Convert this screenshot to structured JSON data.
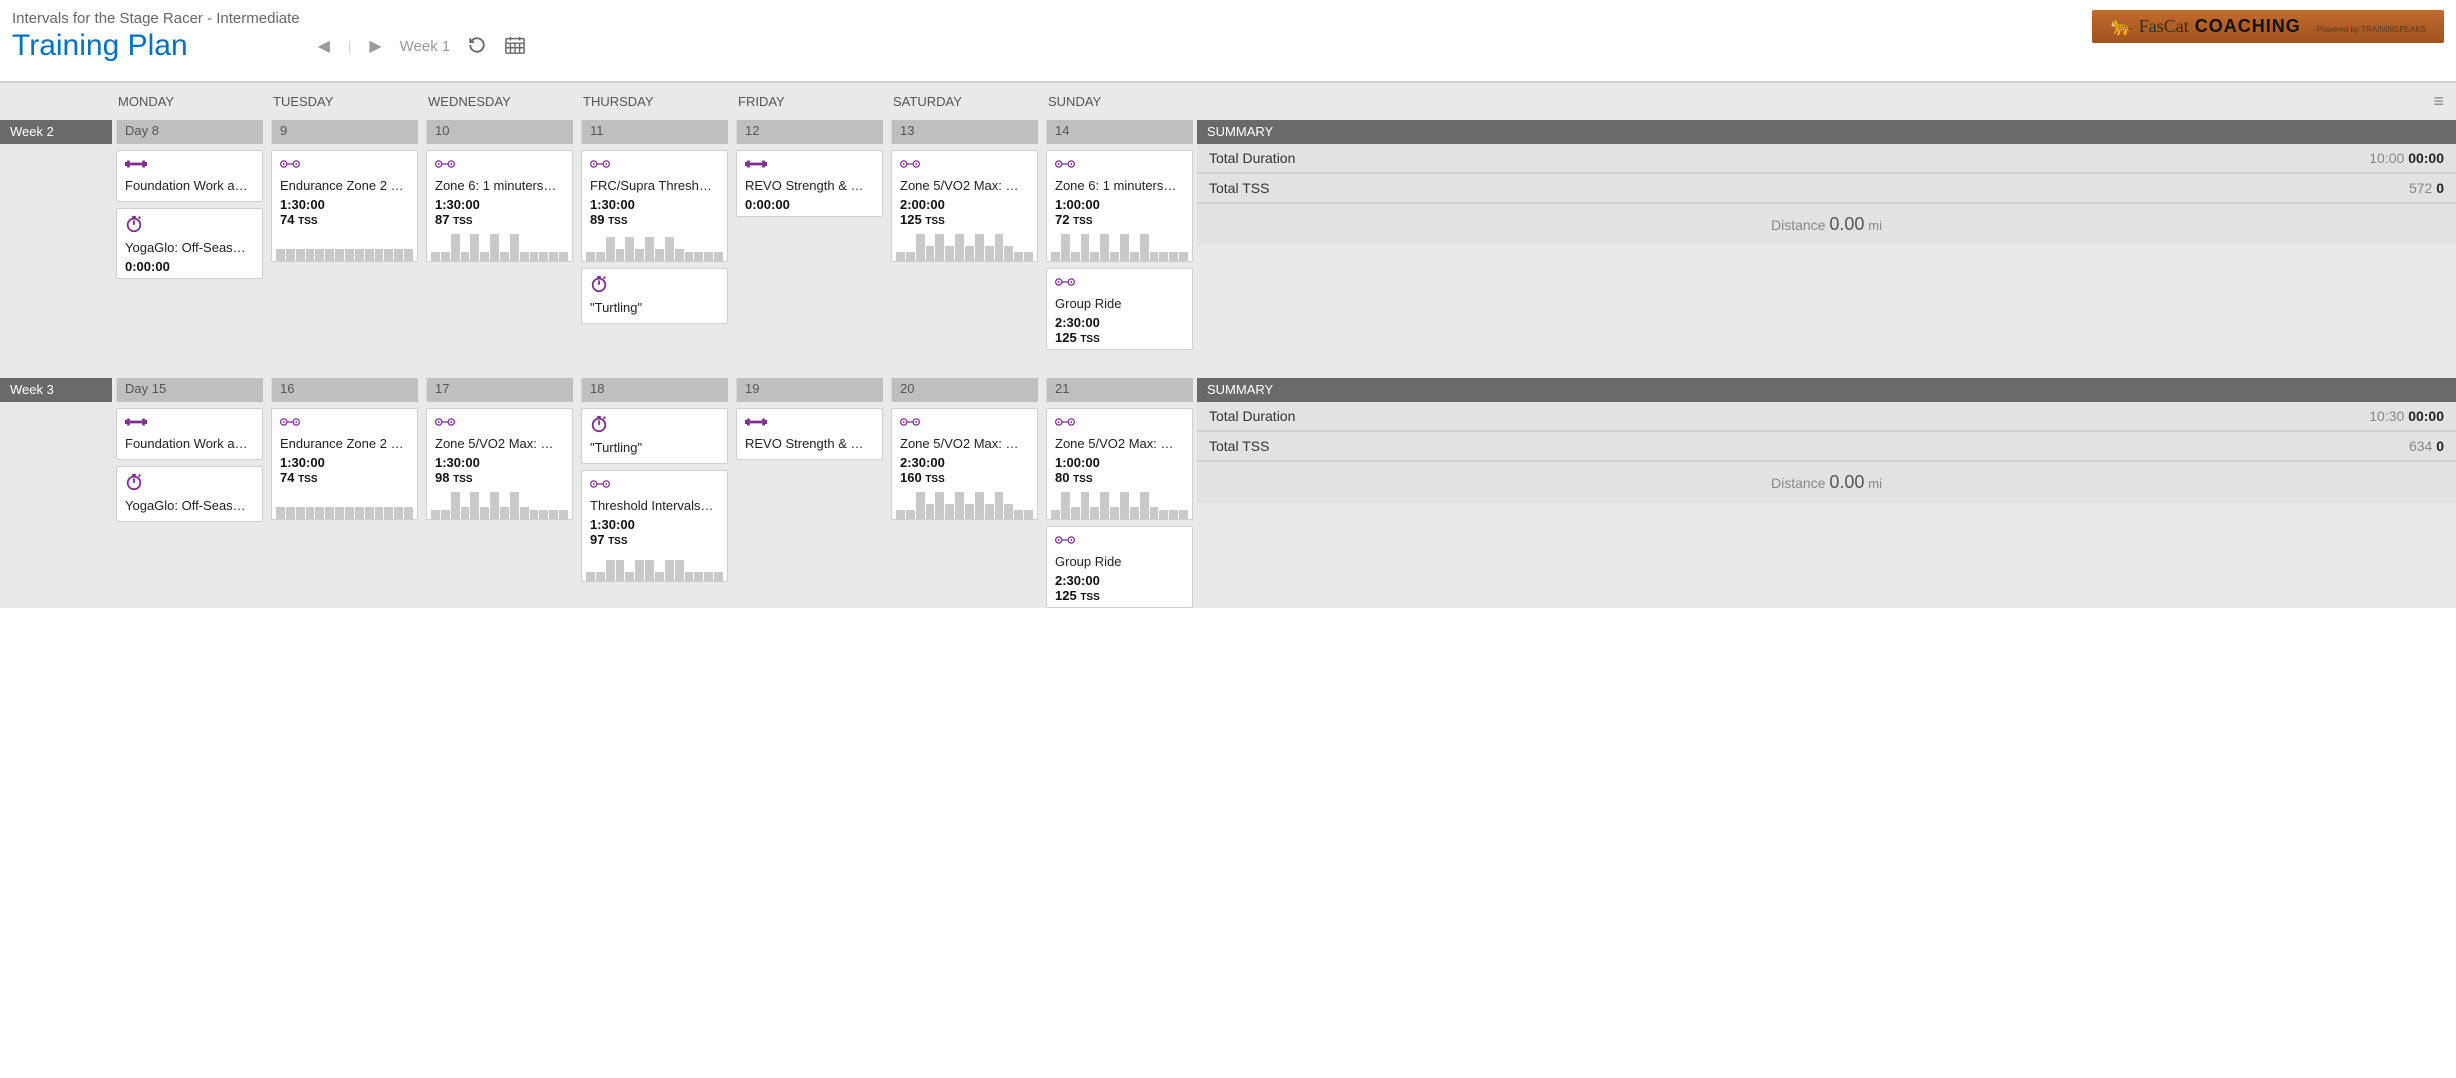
{
  "header": {
    "subtitle": "Intervals for the Stage Racer - Intermediate",
    "title": "Training Plan",
    "week_label": "Week 1",
    "logo_brand1": "FasCat",
    "logo_brand2": "COACHING",
    "logo_powered": "Powered by TRAININGPEAKS"
  },
  "day_headers": [
    "MONDAY",
    "TUESDAY",
    "WEDNESDAY",
    "THURSDAY",
    "FRIDAY",
    "SATURDAY",
    "SUNDAY"
  ],
  "summary_labels": {
    "header": "SUMMARY",
    "total_duration": "Total Duration",
    "total_tss": "Total TSS",
    "distance": "Distance"
  },
  "colors": {
    "accent": "#7b2e8c",
    "title": "#0071bc",
    "panel": "#e9e9e9",
    "week_tab": "#6a6a6a",
    "day_bar": "#bfbfbf",
    "spark": "#c9c9c9"
  },
  "weeks": [
    {
      "label": "Week 2",
      "summary": {
        "duration_grey": "10:00",
        "duration_bold": "00:00",
        "tss_grey": "572",
        "tss_bold": "0",
        "distance_value": "0.00",
        "distance_unit": "mi"
      },
      "days": [
        {
          "num": "Day 8",
          "cards": [
            {
              "icon": "dumbbell",
              "name": "Foundation Work a…"
            },
            {
              "icon": "stopwatch",
              "name": "YogaGlo: Off-Seas…",
              "duration": "0:00:00"
            }
          ]
        },
        {
          "num": "9",
          "cards": [
            {
              "icon": "bike",
              "name": "Endurance Zone 2 …",
              "duration": "1:30:00",
              "tss": "74",
              "spark": [
                4,
                4,
                4,
                4,
                4,
                4,
                4,
                4,
                4,
                4,
                4,
                4,
                4,
                4
              ]
            }
          ]
        },
        {
          "num": "10",
          "cards": [
            {
              "icon": "bike",
              "name": "Zone 6: 1 minuters…",
              "duration": "1:30:00",
              "tss": "87",
              "spark": [
                3,
                3,
                9,
                3,
                9,
                3,
                9,
                3,
                9,
                3,
                3,
                3,
                3,
                3
              ]
            }
          ]
        },
        {
          "num": "11",
          "cards": [
            {
              "icon": "bike",
              "name": "FRC/Supra Thresh…",
              "duration": "1:30:00",
              "tss": "89",
              "spark": [
                3,
                3,
                8,
                4,
                8,
                4,
                8,
                4,
                8,
                4,
                3,
                3,
                3,
                3
              ]
            },
            {
              "icon": "stopwatch",
              "name": "\"Turtling\""
            }
          ]
        },
        {
          "num": "12",
          "cards": [
            {
              "icon": "dumbbell",
              "name": "REVO Strength & …",
              "duration": "0:00:00"
            }
          ]
        },
        {
          "num": "13",
          "cards": [
            {
              "icon": "bike",
              "name": "Zone 5/VO2 Max: …",
              "duration": "2:00:00",
              "tss": "125",
              "spark": [
                3,
                3,
                9,
                5,
                9,
                5,
                9,
                5,
                9,
                5,
                9,
                5,
                3,
                3
              ]
            }
          ]
        },
        {
          "num": "14",
          "cards": [
            {
              "icon": "bike",
              "name": "Zone 6: 1 minuters…",
              "duration": "1:00:00",
              "tss": "72",
              "spark": [
                3,
                9,
                3,
                9,
                3,
                9,
                3,
                9,
                3,
                9,
                3,
                3,
                3,
                3
              ]
            },
            {
              "icon": "bike",
              "name": "Group Ride",
              "duration": "2:30:00",
              "tss": "125"
            }
          ]
        }
      ]
    },
    {
      "label": "Week 3",
      "summary": {
        "duration_grey": "10:30",
        "duration_bold": "00:00",
        "tss_grey": "634",
        "tss_bold": "0",
        "distance_value": "0.00",
        "distance_unit": "mi"
      },
      "days": [
        {
          "num": "Day 15",
          "cards": [
            {
              "icon": "dumbbell",
              "name": "Foundation Work a…"
            },
            {
              "icon": "stopwatch",
              "name": "YogaGlo: Off-Seas…"
            }
          ]
        },
        {
          "num": "16",
          "cards": [
            {
              "icon": "bike",
              "name": "Endurance Zone 2 …",
              "duration": "1:30:00",
              "tss": "74",
              "spark": [
                4,
                4,
                4,
                4,
                4,
                4,
                4,
                4,
                4,
                4,
                4,
                4,
                4,
                4
              ]
            }
          ]
        },
        {
          "num": "17",
          "cards": [
            {
              "icon": "bike",
              "name": "Zone 5/VO2 Max: …",
              "duration": "1:30:00",
              "tss": "98",
              "spark": [
                3,
                3,
                9,
                4,
                9,
                4,
                9,
                4,
                9,
                4,
                3,
                3,
                3,
                3
              ]
            }
          ]
        },
        {
          "num": "18",
          "cards": [
            {
              "icon": "stopwatch",
              "name": "\"Turtling\""
            },
            {
              "icon": "bike",
              "name": "Threshold Intervals…",
              "duration": "1:30:00",
              "tss": "97",
              "spark": [
                3,
                3,
                7,
                7,
                3,
                7,
                7,
                3,
                7,
                7,
                3,
                3,
                3,
                3
              ]
            }
          ]
        },
        {
          "num": "19",
          "cards": [
            {
              "icon": "dumbbell",
              "name": "REVO Strength & …"
            }
          ]
        },
        {
          "num": "20",
          "cards": [
            {
              "icon": "bike",
              "name": "Zone 5/VO2 Max: …",
              "duration": "2:30:00",
              "tss": "160",
              "spark": [
                3,
                3,
                9,
                5,
                9,
                5,
                9,
                5,
                9,
                5,
                9,
                5,
                3,
                3
              ]
            }
          ]
        },
        {
          "num": "21",
          "cards": [
            {
              "icon": "bike",
              "name": "Zone 5/VO2 Max: …",
              "duration": "1:00:00",
              "tss": "80",
              "spark": [
                3,
                9,
                4,
                9,
                4,
                9,
                4,
                9,
                4,
                9,
                4,
                3,
                3,
                3
              ]
            },
            {
              "icon": "bike",
              "name": "Group Ride",
              "duration": "2:30:00",
              "tss": "125"
            }
          ]
        }
      ]
    }
  ]
}
